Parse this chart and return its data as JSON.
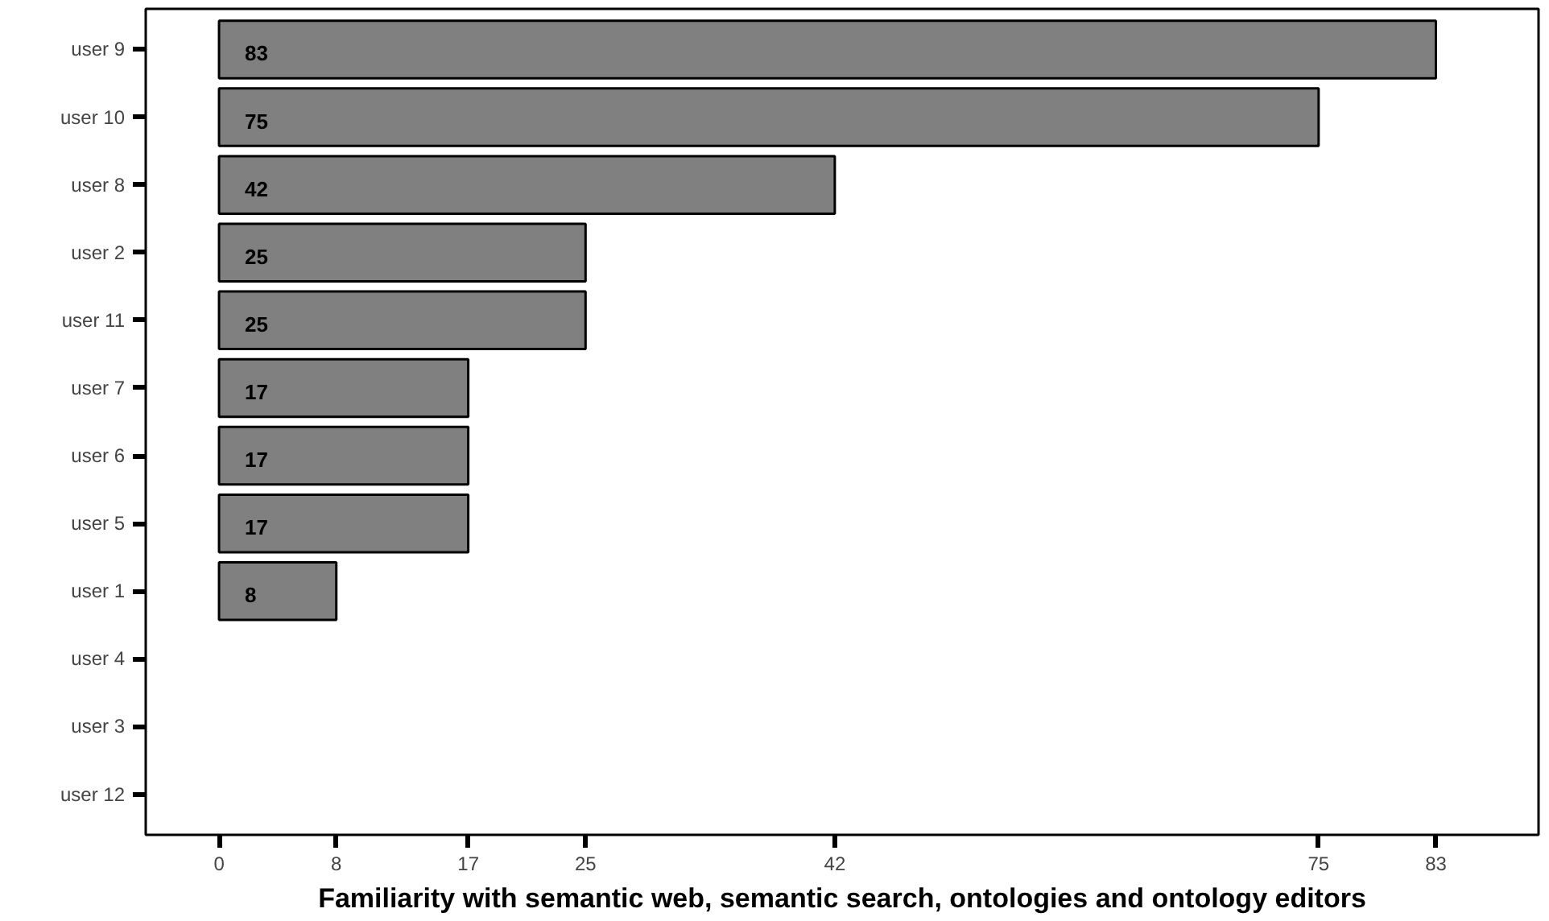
{
  "chart_data": {
    "type": "bar",
    "orientation": "horizontal",
    "xlabel": "Familiarity with semantic web, semantic search, ontologies and ontology editors",
    "categories": [
      "user 9",
      "user 10",
      "user 8",
      "user 2",
      "user 11",
      "user 7",
      "user 6",
      "user 5",
      "user 1",
      "user 4",
      "user 3",
      "user 12"
    ],
    "values": [
      83,
      75,
      42,
      25,
      25,
      17,
      17,
      17,
      8,
      null,
      null,
      null
    ],
    "color": "#808080",
    "data_labels": true,
    "xlim": [
      -5,
      90
    ],
    "xticks": [
      0,
      8,
      17,
      25,
      42,
      75,
      83
    ],
    "grid": false
  }
}
